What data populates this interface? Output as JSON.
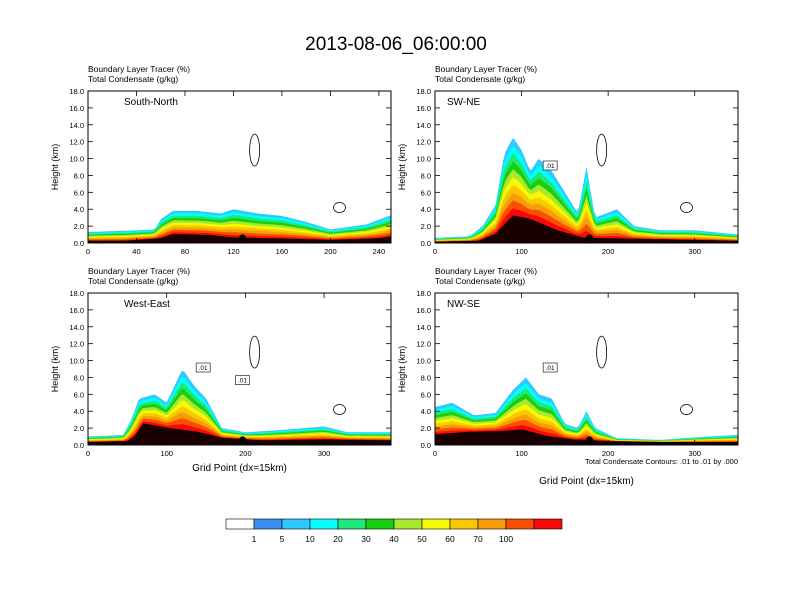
{
  "title": "2013-08-06_06:00:00",
  "footnote": "Total Condensate Contours: .01 to .01 by .000",
  "colorbar": {
    "colors": [
      "#ffffff",
      "#3a8ef0",
      "#2fc8ff",
      "#00ffff",
      "#20e878",
      "#18d010",
      "#a8e830",
      "#f8f800",
      "#f8c800",
      "#f89c08",
      "#f85000",
      "#f80808"
    ],
    "labels": [
      "1",
      "5",
      "10",
      "20",
      "30",
      "40",
      "50",
      "60",
      "70",
      "100"
    ]
  },
  "chart_data": [
    {
      "type": "heatmap",
      "name": "south-north",
      "title": "South-North",
      "subtitle_line1": "Boundary Layer Tracer    (%)",
      "subtitle_line2": "Total Condensate    (g/kg)",
      "ylabel": "Height (km)",
      "xlabel": "",
      "xlim": [
        0,
        250
      ],
      "ylim": [
        0,
        18
      ],
      "xticks": [
        "0",
        "40",
        "80",
        "120",
        "160",
        "200",
        "240"
      ],
      "xtick_values": [
        0,
        40,
        80,
        120,
        160,
        200,
        240
      ],
      "yticks": [
        "0.0",
        "2.0",
        "4.0",
        "6.0",
        "8.0",
        "10.0",
        "12.0",
        "14.0",
        "16.0",
        "18.0"
      ],
      "terrain": [
        [
          0,
          0.2
        ],
        [
          30,
          0.2
        ],
        [
          60,
          0.5
        ],
        [
          70,
          1.0
        ],
        [
          100,
          0.9
        ],
        [
          120,
          0.6
        ],
        [
          150,
          0.5
        ],
        [
          180,
          0.4
        ],
        [
          200,
          0.3
        ],
        [
          240,
          0.5
        ],
        [
          250,
          0.7
        ]
      ],
      "tracer_top": [
        [
          0,
          1.3
        ],
        [
          40,
          1.5
        ],
        [
          55,
          1.6
        ],
        [
          60,
          2.8
        ],
        [
          70,
          3.8
        ],
        [
          90,
          3.8
        ],
        [
          110,
          3.5
        ],
        [
          120,
          4.0
        ],
        [
          140,
          3.5
        ],
        [
          160,
          3.2
        ],
        [
          180,
          2.5
        ],
        [
          200,
          1.6
        ],
        [
          230,
          2.2
        ],
        [
          250,
          3.3
        ]
      ],
      "contour_labels": []
    },
    {
      "type": "heatmap",
      "name": "sw-ne",
      "title": "SW-NE",
      "subtitle_line1": "Boundary Layer Tracer    (%)",
      "subtitle_line2": "Total Condensate    (g/kg)",
      "ylabel": "Height (km)",
      "xlabel": "",
      "xlim": [
        0,
        350
      ],
      "ylim": [
        0,
        18
      ],
      "xticks": [
        "0",
        "100",
        "200",
        "300"
      ],
      "xtick_values": [
        0,
        100,
        200,
        300
      ],
      "yticks": [
        "0.0",
        "2.0",
        "4.0",
        "6.0",
        "8.0",
        "10.0",
        "12.0",
        "14.0",
        "16.0",
        "18.0"
      ],
      "terrain": [
        [
          0,
          0.1
        ],
        [
          50,
          0.2
        ],
        [
          70,
          1.0
        ],
        [
          90,
          3.2
        ],
        [
          110,
          2.8
        ],
        [
          140,
          1.5
        ],
        [
          170,
          0.6
        ],
        [
          200,
          0.5
        ],
        [
          250,
          0.4
        ],
        [
          300,
          0.3
        ],
        [
          350,
          0.2
        ]
      ],
      "tracer_top": [
        [
          0,
          0.6
        ],
        [
          40,
          0.8
        ],
        [
          55,
          2.0
        ],
        [
          70,
          4.5
        ],
        [
          80,
          10.5
        ],
        [
          90,
          12.5
        ],
        [
          100,
          11.0
        ],
        [
          110,
          8.5
        ],
        [
          120,
          10.0
        ],
        [
          135,
          8.5
        ],
        [
          150,
          6.0
        ],
        [
          165,
          3.5
        ],
        [
          175,
          9.0
        ],
        [
          185,
          3.0
        ],
        [
          210,
          4.0
        ],
        [
          230,
          2.0
        ],
        [
          260,
          1.5
        ],
        [
          300,
          1.5
        ],
        [
          350,
          1.0
        ]
      ],
      "contour_labels": [
        ".01"
      ]
    },
    {
      "type": "heatmap",
      "name": "west-east",
      "title": "West-East",
      "subtitle_line1": "Boundary Layer Tracer    (%)",
      "subtitle_line2": "Total Condensate    (g/kg)",
      "ylabel": "Height (km)",
      "xlabel": "Grid Point (dx=15km)",
      "xlim": [
        0,
        385
      ],
      "ylim": [
        0,
        18
      ],
      "xticks": [
        "0",
        "100",
        "200",
        "300"
      ],
      "xtick_values": [
        0,
        100,
        200,
        300
      ],
      "yticks": [
        "0.0",
        "2.0",
        "4.0",
        "6.0",
        "8.0",
        "10.0",
        "12.0",
        "14.0",
        "16.0",
        "18.0"
      ],
      "terrain": [
        [
          0,
          0.3
        ],
        [
          50,
          0.4
        ],
        [
          60,
          1.0
        ],
        [
          70,
          2.5
        ],
        [
          100,
          2.0
        ],
        [
          140,
          1.5
        ],
        [
          170,
          0.8
        ],
        [
          220,
          0.5
        ],
        [
          300,
          0.6
        ],
        [
          385,
          0.5
        ]
      ],
      "tracer_top": [
        [
          0,
          1.0
        ],
        [
          45,
          1.2
        ],
        [
          55,
          3.0
        ],
        [
          65,
          5.5
        ],
        [
          85,
          6.0
        ],
        [
          100,
          5.0
        ],
        [
          120,
          9.0
        ],
        [
          135,
          7.0
        ],
        [
          150,
          5.5
        ],
        [
          170,
          2.0
        ],
        [
          200,
          1.5
        ],
        [
          250,
          1.8
        ],
        [
          300,
          2.2
        ],
        [
          330,
          1.5
        ],
        [
          385,
          1.5
        ]
      ],
      "contour_labels": [
        ".01",
        ".01"
      ]
    },
    {
      "type": "heatmap",
      "name": "nw-se",
      "title": "NW-SE",
      "subtitle_line1": "Boundary Layer Tracer    (%)",
      "subtitle_line2": "Total Condensate    (g/kg)",
      "ylabel": "Height (km)",
      "xlabel": "Grid Point (dx=15km)",
      "xlim": [
        0,
        350
      ],
      "ylim": [
        0,
        18
      ],
      "xticks": [
        "0",
        "100",
        "200",
        "300"
      ],
      "xtick_values": [
        0,
        100,
        200,
        300
      ],
      "yticks": [
        "0.0",
        "2.0",
        "4.0",
        "6.0",
        "8.0",
        "10.0",
        "12.0",
        "14.0",
        "16.0",
        "18.0"
      ],
      "terrain": [
        [
          0,
          1.2
        ],
        [
          40,
          1.5
        ],
        [
          80,
          1.6
        ],
        [
          100,
          1.8
        ],
        [
          130,
          1.0
        ],
        [
          160,
          0.6
        ],
        [
          200,
          0.4
        ],
        [
          260,
          0.3
        ],
        [
          350,
          0.3
        ]
      ],
      "tracer_top": [
        [
          0,
          4.5
        ],
        [
          20,
          5.0
        ],
        [
          45,
          3.5
        ],
        [
          70,
          3.8
        ],
        [
          90,
          6.5
        ],
        [
          105,
          8.0
        ],
        [
          120,
          6.0
        ],
        [
          135,
          5.5
        ],
        [
          150,
          2.5
        ],
        [
          165,
          2.0
        ],
        [
          175,
          4.0
        ],
        [
          185,
          2.0
        ],
        [
          210,
          0.8
        ],
        [
          260,
          0.6
        ],
        [
          300,
          0.9
        ],
        [
          350,
          1.2
        ]
      ],
      "contour_labels": [
        ".01"
      ]
    }
  ]
}
